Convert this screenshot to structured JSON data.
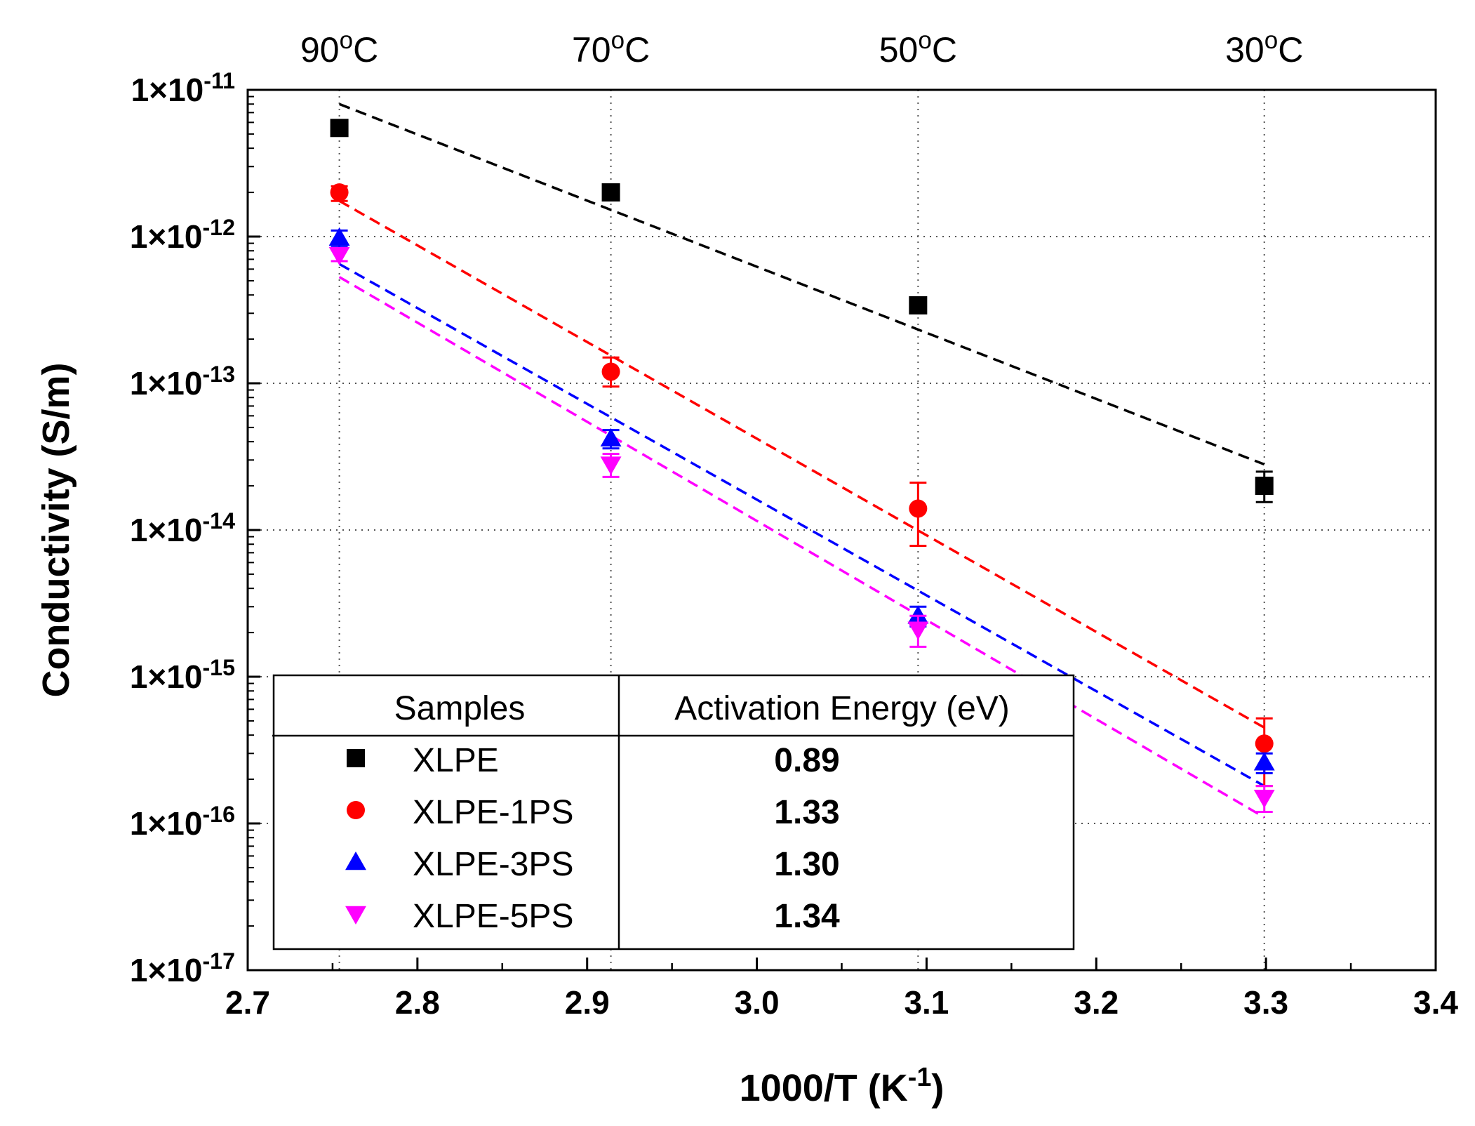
{
  "chart_data": {
    "type": "scatter",
    "title": "",
    "xlabel": "1000/T (K",
    "xlabel_sup": "-1",
    "xlabel_close": ")",
    "ylabel": "Conductivity (S/m)",
    "xlim": [
      2.7,
      3.4
    ],
    "ylim": [
      1e-17,
      1e-11
    ],
    "yscale": "log",
    "grid": "dotted, at data temperatures and y decades",
    "x_ticks": [
      "2.7",
      "2.8",
      "2.9",
      "3.0",
      "3.1",
      "3.2",
      "3.3",
      "3.4"
    ],
    "x_tick_values": [
      2.7,
      2.8,
      2.9,
      3.0,
      3.1,
      3.2,
      3.3,
      3.4
    ],
    "y_ticks": [
      {
        "value": 1e-11,
        "base": "1×10",
        "exp": "-11"
      },
      {
        "value": 1e-12,
        "base": "1×10",
        "exp": "-12"
      },
      {
        "value": 1e-13,
        "base": "1×10",
        "exp": "-13"
      },
      {
        "value": 1e-14,
        "base": "1×10",
        "exp": "-14"
      },
      {
        "value": 1e-15,
        "base": "1×10",
        "exp": "-15"
      },
      {
        "value": 1e-16,
        "base": "1×10",
        "exp": "-16"
      },
      {
        "value": 1e-17,
        "base": "1×10",
        "exp": "-17"
      }
    ],
    "top_axis": [
      {
        "x": 2.754,
        "num": "90",
        "sup": "o",
        "unit": "C"
      },
      {
        "x": 2.914,
        "num": "70",
        "sup": "o",
        "unit": "C"
      },
      {
        "x": 3.095,
        "num": "50",
        "sup": "o",
        "unit": "C"
      },
      {
        "x": 3.299,
        "num": "30",
        "sup": "o",
        "unit": "C"
      }
    ],
    "series": [
      {
        "name": "XLPE",
        "marker": "square",
        "color": "#000000",
        "activation_energy": "0.89",
        "x": [
          2.754,
          2.914,
          3.095,
          3.299
        ],
        "y": [
          5.5e-12,
          2e-12,
          3.4e-13,
          2e-14
        ],
        "err_low": [
          5e-12,
          1.85e-12,
          3.1e-13,
          1.55e-14
        ],
        "err_high": [
          6e-12,
          2.15e-12,
          3.7e-13,
          2.5e-14
        ],
        "fit": {
          "x": [
            2.754,
            3.299
          ],
          "y": [
            8e-12,
            2.8e-14
          ]
        }
      },
      {
        "name": "XLPE-1PS",
        "marker": "circle",
        "color": "#ff0000",
        "activation_energy": "1.33",
        "x": [
          2.754,
          2.914,
          3.095,
          3.299
        ],
        "y": [
          2e-12,
          1.2e-13,
          1.4e-14,
          3.5e-16
        ],
        "err_low": [
          1.75e-12,
          9.5e-14,
          7.8e-15,
          1.8e-16
        ],
        "err_high": [
          2.2e-12,
          1.5e-13,
          2.1e-14,
          5.2e-16
        ],
        "fit": {
          "x": [
            2.754,
            3.299
          ],
          "y": [
            1.75e-12,
            4.5e-16
          ]
        }
      },
      {
        "name": "XLPE-3PS",
        "marker": "triangle-up",
        "color": "#0000ff",
        "activation_energy": "1.30",
        "x": [
          2.754,
          2.914,
          3.095,
          3.299
        ],
        "y": [
          9.8e-13,
          4.2e-14,
          2.6e-15,
          2.6e-16
        ],
        "err_low": [
          8.5e-13,
          3.6e-14,
          2.2e-15,
          2.2e-16
        ],
        "err_high": [
          1.1e-12,
          4.8e-14,
          3e-15,
          3e-16
        ],
        "fit": {
          "x": [
            2.754,
            3.299
          ],
          "y": [
            6.5e-13,
            1.8e-16
          ]
        }
      },
      {
        "name": "XLPE-5PS",
        "marker": "triangle-down",
        "color": "#ff00ff",
        "activation_energy": "1.34",
        "x": [
          2.754,
          2.914,
          3.095,
          3.299
        ],
        "y": [
          7.5e-13,
          2.8e-14,
          2.1e-15,
          1.5e-16
        ],
        "err_low": [
          6.8e-13,
          2.3e-14,
          1.6e-15,
          1.2e-16
        ],
        "err_high": [
          8.2e-13,
          3.3e-14,
          2.6e-15,
          1.8e-16
        ],
        "fit": {
          "x": [
            2.754,
            3.299
          ],
          "y": [
            5.3e-13,
            1.1e-16
          ]
        }
      }
    ],
    "legend": {
      "placement": "bottom-left",
      "header_samples": "Samples",
      "header_energy": "Activation Energy (eV)"
    }
  }
}
